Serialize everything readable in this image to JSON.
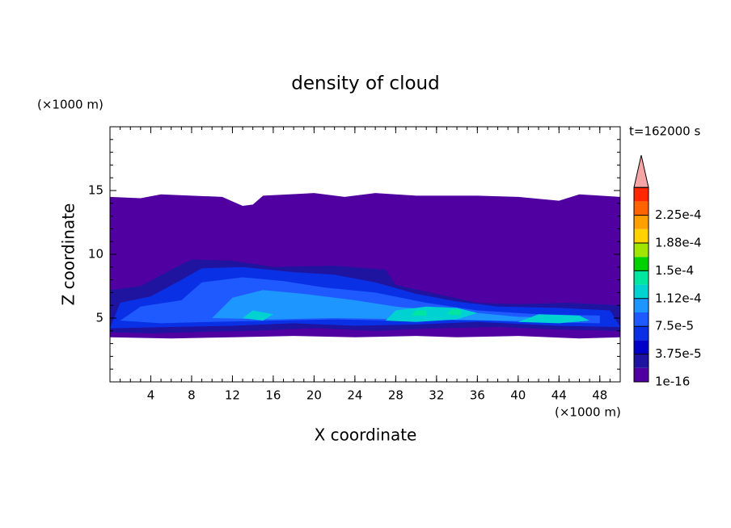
{
  "chart_data": {
    "type": "contour",
    "title": "density of cloud",
    "x_label": "X coordinate",
    "y_label": "Z coordinate",
    "x_unit": "(×1000 m)",
    "y_unit": "(×1000 m)",
    "annotation": "t=162000 s",
    "xlim": [
      0,
      50
    ],
    "ylim": [
      0,
      20
    ],
    "xticks": [
      4,
      8,
      12,
      16,
      20,
      24,
      28,
      32,
      36,
      40,
      44,
      48
    ],
    "yticks": [
      5,
      10,
      15
    ],
    "colorbar": {
      "levels": [
        {
          "value": 1e-16,
          "label": "1e-16"
        },
        {
          "value": 3.75e-05,
          "label": "3.75e-5"
        },
        {
          "value": 7.5e-05,
          "label": "7.5e-5"
        },
        {
          "value": 0.000112,
          "label": "1.12e-4"
        },
        {
          "value": 0.00015,
          "label": "1.5e-4"
        },
        {
          "value": 0.000188,
          "label": "1.88e-4"
        },
        {
          "value": 0.000225,
          "label": "2.25e-4"
        }
      ],
      "colors": [
        "#5000a0",
        "#1e14a0",
        "#0000c8",
        "#0a30e6",
        "#1e5aff",
        "#1e96ff",
        "#00d2d2",
        "#00e6a0",
        "#00d200",
        "#a0e600",
        "#ffd200",
        "#ffa000",
        "#ff6400",
        "#ff2800"
      ],
      "extend_color": "#f5a5a5"
    }
  }
}
